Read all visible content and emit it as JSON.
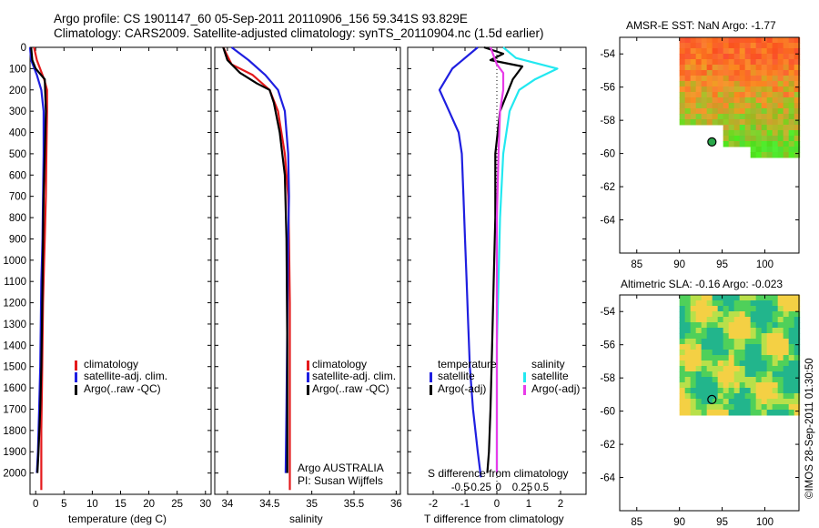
{
  "header": {
    "line1": "Argo profile: CS 1901147_60 05-Sep-2011 20110906_156 59.341S 93.829E",
    "line2": "Climatology: CARS2009. Satellite-adjusted climatology: synTS_20110904.nc (1.5d earlier)"
  },
  "colors": {
    "climatology": "#e41a1c",
    "satellite": "#1f1fe0",
    "argo": "#000000",
    "sat_s": "#22e8f0",
    "argo_s": "#e83be8"
  },
  "chart_data": [
    {
      "type": "line",
      "xlabel": "temperature (deg C)",
      "ylim": [
        2100,
        0
      ],
      "xlim": [
        -1,
        31
      ],
      "xticks": [
        "0",
        "5",
        "10",
        "15",
        "20",
        "25",
        "30"
      ],
      "xtick_values": [
        0,
        5,
        10,
        15,
        20,
        25,
        30
      ],
      "yticks": [
        "0",
        "100",
        "200",
        "300",
        "400",
        "500",
        "600",
        "700",
        "800",
        "900",
        "1000",
        "1100",
        "1200",
        "1300",
        "1400",
        "1500",
        "1600",
        "1700",
        "1800",
        "1900",
        "2000"
      ],
      "legend": [
        "climatology",
        "satellite-adj. clim.",
        "Argo(..raw -QC)"
      ],
      "series": [
        {
          "name": "climatology",
          "color_key": "climatology",
          "x": [
            -0.3,
            0.2,
            1.5,
            2.0,
            2.0,
            1.9,
            1.8,
            1.6,
            1.5,
            1.4,
            1.3,
            1.2,
            1.1,
            1.0,
            1.0,
            1.0
          ],
          "y": [
            0,
            60,
            150,
            200,
            300,
            500,
            700,
            900,
            1000,
            1100,
            1200,
            1400,
            1600,
            1800,
            2000,
            2080
          ]
        },
        {
          "name": "satellite-adj. clim.",
          "color_key": "satellite",
          "x": [
            -1.0,
            -0.8,
            0.2,
            1.0,
            1.4,
            1.4,
            1.3,
            1.2,
            1.1,
            1.0,
            0.9,
            0.8,
            0.6,
            0.4,
            0.2
          ],
          "y": [
            0,
            60,
            130,
            200,
            300,
            500,
            700,
            900,
            1000,
            1100,
            1300,
            1500,
            1700,
            1900,
            2000
          ]
        },
        {
          "name": "Argo(..raw -QC)",
          "color_key": "argo",
          "x": [
            -0.8,
            -0.6,
            0.0,
            1.6,
            1.8,
            1.6,
            1.4,
            1.3,
            1.2,
            1.1,
            1.0,
            0.8,
            0.5,
            0.3
          ],
          "y": [
            0,
            60,
            100,
            150,
            300,
            500,
            700,
            900,
            1100,
            1300,
            1500,
            1700,
            1900,
            2000
          ]
        }
      ]
    },
    {
      "type": "line",
      "xlabel": "salinity",
      "ylim": [
        2100,
        0
      ],
      "xlim": [
        33.85,
        36.05
      ],
      "xticks": [
        "34",
        "34.5",
        "35",
        "35.5",
        "36"
      ],
      "xtick_values": [
        34,
        34.5,
        35,
        35.5,
        36
      ],
      "legend": [
        "climatology",
        "satellite-adj. clim.",
        "Argo(..raw -QC)"
      ],
      "annotation1": "Argo AUSTRALIA",
      "annotation2": "PI: Susan Wijffels",
      "series": [
        {
          "name": "climatology",
          "color_key": "climatology",
          "x": [
            33.95,
            34.05,
            34.3,
            34.5,
            34.6,
            34.68,
            34.72,
            34.73,
            34.74,
            34.74,
            34.74
          ],
          "y": [
            0,
            80,
            130,
            200,
            300,
            500,
            700,
            900,
            1200,
            1600,
            2080
          ]
        },
        {
          "name": "satellite-adj. clim.",
          "color_key": "satellite",
          "x": [
            34.05,
            34.25,
            34.45,
            34.6,
            34.68,
            34.72,
            34.73,
            34.72,
            34.71,
            34.7,
            34.69
          ],
          "y": [
            0,
            60,
            130,
            200,
            300,
            500,
            700,
            900,
            1300,
            1700,
            2000
          ]
        },
        {
          "name": "Argo(..raw -QC)",
          "color_key": "argo",
          "x": [
            33.95,
            34.0,
            34.15,
            34.35,
            34.5,
            34.55,
            34.62,
            34.68,
            34.7,
            34.71,
            34.71
          ],
          "y": [
            0,
            60,
            120,
            170,
            200,
            260,
            400,
            600,
            900,
            1400,
            2000
          ]
        }
      ]
    },
    {
      "type": "line",
      "xlabel": "T difference from climatology",
      "top_label": "S difference from climatology",
      "ylim": [
        2100,
        0
      ],
      "xlim": [
        -2.8,
        2.8
      ],
      "xticks": [
        "-2",
        "-1",
        "0",
        "1",
        "2"
      ],
      "xtick_values": [
        -2,
        -1,
        0,
        1,
        2
      ],
      "sticks": [
        "-0.5",
        "-0.25",
        "0",
        "0.25",
        "0.5"
      ],
      "stick_values": [
        -1.15,
        -0.55,
        0.05,
        0.8,
        1.4
      ],
      "legend_titles": [
        "temperature",
        "salinity"
      ],
      "legend_left": [
        "satellite",
        "Argo(-adj)"
      ],
      "legend_right": [
        "satellite",
        "Argo(-adj)"
      ],
      "series": [
        {
          "name": "T satellite",
          "color_key": "satellite",
          "x": [
            -0.6,
            -1.4,
            -1.8,
            -1.5,
            -1.2,
            -1.1,
            -1.05,
            -1.0,
            -0.95,
            -0.9,
            -0.85,
            -0.75,
            -0.6,
            -0.5
          ],
          "y": [
            0,
            100,
            200,
            300,
            400,
            500,
            700,
            900,
            1100,
            1300,
            1500,
            1700,
            1900,
            2020
          ]
        },
        {
          "name": "T Argo",
          "color_key": "argo",
          "x": [
            -0.4,
            0.2,
            -0.2,
            0.8,
            0.5,
            0.1,
            -0.05,
            -0.05,
            -0.1,
            -0.15,
            -0.2,
            -0.25,
            -0.3
          ],
          "y": [
            0,
            30,
            60,
            90,
            150,
            300,
            500,
            800,
            1100,
            1400,
            1700,
            1900,
            2000
          ]
        },
        {
          "name": "S satellite",
          "color_key": "sat_s",
          "x": [
            0.2,
            0.6,
            1.9,
            1.2,
            0.7,
            0.4,
            0.2,
            0.1,
            0.05,
            0.0,
            0.0,
            0.0
          ],
          "y": [
            0,
            50,
            100,
            150,
            200,
            300,
            500,
            800,
            1100,
            1400,
            1700,
            2000
          ]
        },
        {
          "name": "S Argo",
          "color_key": "argo_s",
          "x": [
            -0.2,
            -0.1,
            0.0,
            0.2,
            0.2,
            0.1,
            0.05,
            0.0,
            0.0,
            0.0,
            0.0
          ],
          "y": [
            0,
            40,
            80,
            120,
            200,
            300,
            500,
            800,
            1200,
            1600,
            2000
          ]
        }
      ]
    }
  ],
  "maps": [
    {
      "title": "AMSR-E SST: NaN Argo: -1.77",
      "xticks": [
        "85",
        "90",
        "95",
        "100"
      ],
      "yticks": [
        "-54",
        "-56",
        "-58",
        "-60",
        "-62",
        "-64"
      ],
      "float_lon": 93.8,
      "float_lat": -59.3
    },
    {
      "title": "Altimetric SLA: -0.16 Argo: -0.023",
      "xticks": [
        "85",
        "90",
        "95",
        "100"
      ],
      "yticks": [
        "-54",
        "-56",
        "-58",
        "-60",
        "-62",
        "-64"
      ],
      "float_lon": 93.8,
      "float_lat": -59.3
    }
  ],
  "credit": "©IMOS 28-Sep-2011 01:30:50"
}
